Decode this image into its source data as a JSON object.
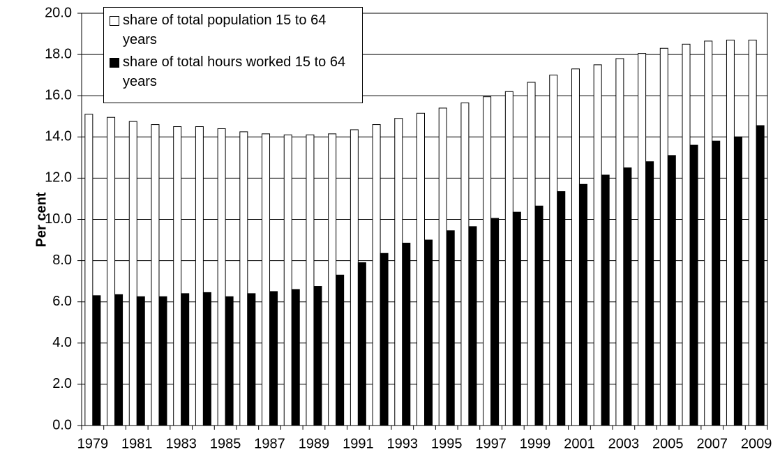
{
  "chart_data": {
    "type": "bar",
    "y_label": "Per cent",
    "categories": [
      "1979",
      null,
      "1981",
      null,
      "1983",
      null,
      "1985",
      null,
      "1987",
      null,
      "1989",
      null,
      "1991",
      null,
      "1993",
      null,
      "1995",
      null,
      "1997",
      null,
      "1999",
      null,
      "2001",
      null,
      "2003",
      null,
      "2005",
      null,
      "2007",
      null,
      "2009"
    ],
    "series": [
      {
        "name": "share of total population 15 to 64 years",
        "color": "#ffffff",
        "values": [
          15.1,
          14.95,
          14.75,
          14.6,
          14.5,
          14.5,
          14.4,
          14.25,
          14.15,
          14.1,
          14.1,
          14.15,
          14.35,
          14.6,
          14.9,
          15.15,
          15.4,
          15.65,
          15.95,
          16.2,
          16.65,
          17.0,
          17.3,
          17.5,
          17.8,
          18.05,
          18.3,
          18.5,
          18.65,
          18.7,
          18.7
        ]
      },
      {
        "name": "share of total hours worked 15 to 64 years",
        "color": "#000000",
        "values": [
          6.3,
          6.35,
          6.25,
          6.25,
          6.4,
          6.45,
          6.25,
          6.4,
          6.5,
          6.6,
          6.75,
          7.3,
          7.9,
          8.35,
          8.85,
          9.0,
          9.45,
          9.65,
          10.05,
          10.35,
          10.65,
          11.35,
          11.7,
          12.15,
          12.5,
          12.8,
          13.1,
          13.6,
          13.8,
          14.0,
          14.55
        ]
      }
    ],
    "ylim": [
      0,
      20
    ],
    "yticks": [
      {
        "value": 0,
        "label": "0.0"
      },
      {
        "value": 2,
        "label": "2.0"
      },
      {
        "value": 4,
        "label": "4.0"
      },
      {
        "value": 6,
        "label": "6.0"
      },
      {
        "value": 8,
        "label": "8.0"
      },
      {
        "value": 10,
        "label": "10.0"
      },
      {
        "value": 12,
        "label": "12.0"
      },
      {
        "value": 14,
        "label": "14.0"
      },
      {
        "value": 16,
        "label": "16.0"
      },
      {
        "value": 18,
        "label": "18.0"
      },
      {
        "value": 20,
        "label": "20.0"
      }
    ],
    "grid": true,
    "legend": "upper left"
  }
}
